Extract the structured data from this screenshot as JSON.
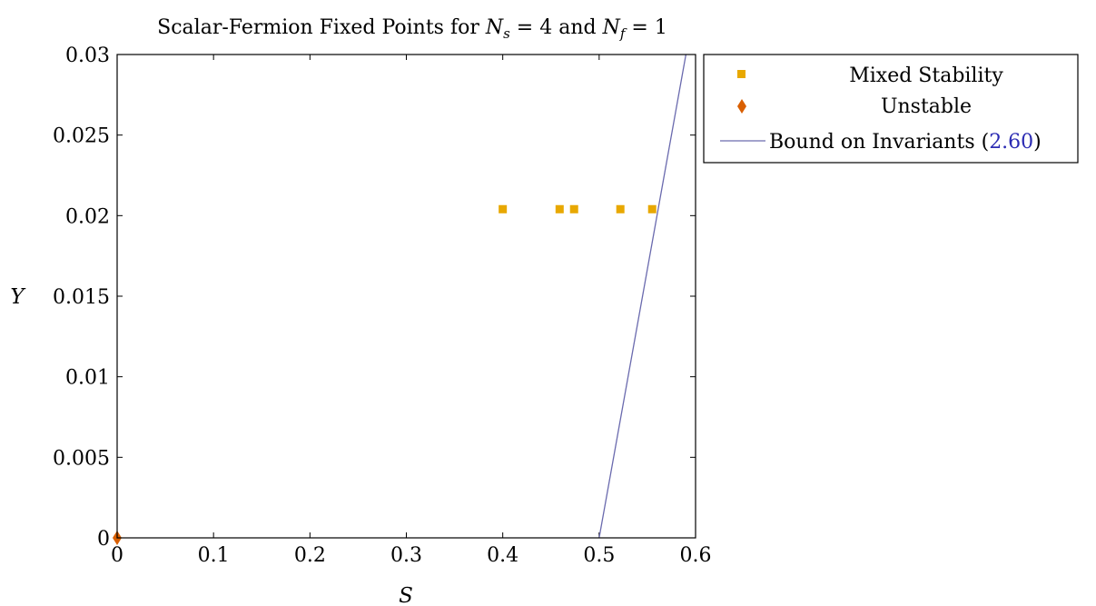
{
  "chart_data": {
    "type": "scatter",
    "title": {
      "prefix": "Scalar-Fermion Fixed Points for ",
      "ns_var": "N",
      "ns_sub": "s",
      "ns_val": " = 4",
      "mid": " and ",
      "nf_var": "N",
      "nf_sub": "f",
      "nf_val": " = 1"
    },
    "xlabel": "S",
    "ylabel": "Y",
    "xlim": [
      0,
      0.6
    ],
    "ylim": [
      0,
      0.03
    ],
    "x_ticks": [
      0,
      0.1,
      0.2,
      0.3,
      0.4,
      0.5,
      0.6
    ],
    "x_tick_labels": [
      "0",
      "0.1",
      "0.2",
      "0.3",
      "0.4",
      "0.5",
      "0.6"
    ],
    "y_ticks": [
      0,
      0.005,
      0.01,
      0.015,
      0.02,
      0.025,
      0.03
    ],
    "y_tick_labels": [
      "0",
      "0.005",
      "0.01",
      "0.015",
      "0.02",
      "0.025",
      "0.03"
    ],
    "grid": false,
    "legend_position": "outside-right-top",
    "series": [
      {
        "name": "Mixed Stability",
        "marker": "square",
        "color": "#E8A800",
        "points": [
          {
            "x": 0.4,
            "y": 0.0204
          },
          {
            "x": 0.459,
            "y": 0.0204
          },
          {
            "x": 0.474,
            "y": 0.0204
          },
          {
            "x": 0.522,
            "y": 0.0204
          },
          {
            "x": 0.555,
            "y": 0.0204
          }
        ]
      },
      {
        "name": "Unstable",
        "marker": "diamond",
        "color": "#D95F02",
        "points": [
          {
            "x": 0,
            "y": 0
          }
        ]
      },
      {
        "name": "Bound on Invariants",
        "name_suffix_open": " (",
        "ref": "2.60",
        "name_suffix_close": ")",
        "ref_color": "#2B2BB3",
        "marker": "line",
        "color": "#6A6AAE",
        "points": [
          {
            "x": 0.5,
            "y": 0
          },
          {
            "x": 0.59,
            "y": 0.03
          }
        ]
      }
    ]
  }
}
